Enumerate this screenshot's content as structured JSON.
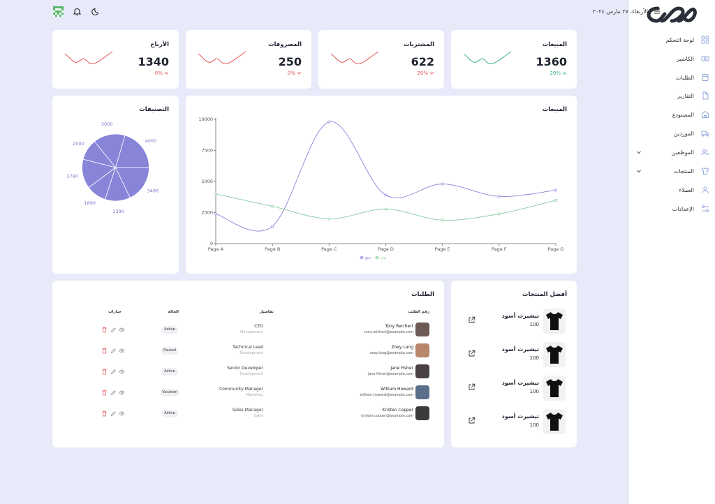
{
  "topbar": {
    "date": "الأربعاء، ٢٧ مارس ٢٠٢٤"
  },
  "sidebar": {
    "items": [
      {
        "label": "لوحة التحكم",
        "icon": "dashboard-icon"
      },
      {
        "label": "الكاشير",
        "icon": "cashier-icon"
      },
      {
        "label": "الطلبات",
        "icon": "orders-icon"
      },
      {
        "label": "التقارير",
        "icon": "reports-icon"
      },
      {
        "label": "المستودع",
        "icon": "warehouse-icon"
      },
      {
        "label": "الموردين",
        "icon": "truck-icon"
      },
      {
        "label": "الموظفين",
        "icon": "users-icon"
      },
      {
        "label": "المنتجات",
        "icon": "tshirt-icon"
      },
      {
        "label": "العملاء",
        "icon": "customers-icon"
      },
      {
        "label": "الإعدادات",
        "icon": "settings-icon"
      }
    ]
  },
  "stats": [
    {
      "title": "المبيعات",
      "value": "1360",
      "change": "20%",
      "trend": "up",
      "color": "#3aae83"
    },
    {
      "title": "المشتريات",
      "value": "622",
      "change": "20%",
      "trend": "down",
      "color": "#e25555"
    },
    {
      "title": "المصروفات",
      "value": "250",
      "change": "0%",
      "trend": "down",
      "color": "#e25555"
    },
    {
      "title": "الأرباح",
      "value": "1340",
      "change": "0%",
      "trend": "down",
      "color": "#e25555"
    }
  ],
  "chart_data": [
    {
      "type": "line",
      "title": "المبيعات",
      "categories": [
        "Page A",
        "Page B",
        "Page C",
        "Page D",
        "Page E",
        "Page F",
        "Page G"
      ],
      "ylim": [
        0,
        10000
      ],
      "yticks": [
        0,
        2500,
        5000,
        7500,
        10000
      ],
      "grid": false,
      "legend": "bottom",
      "series": [
        {
          "name": "pv",
          "color": "#8884d8",
          "values": [
            2400,
            1398,
            9800,
            3908,
            4800,
            3800,
            4300
          ]
        },
        {
          "name": "uv",
          "color": "#82ca9d",
          "values": [
            4000,
            3000,
            2000,
            2780,
            1890,
            2390,
            3490
          ]
        }
      ]
    },
    {
      "type": "pie",
      "title": "التصنيفات",
      "color": "#8884d8",
      "values": [
        4000,
        3000,
        2000,
        2780,
        1890,
        2390,
        3490
      ]
    }
  ],
  "orders": {
    "title": "الطلبات",
    "columns": [
      "رقم الطلب",
      "تفاصيل",
      "الحالة",
      "خيارات"
    ],
    "rows": [
      {
        "name": "Tony Reichert",
        "email": "tony.reichert@example.com",
        "role": "CEO",
        "dept": "Management",
        "status": "Active"
      },
      {
        "name": "Zoey Lang",
        "email": "zoey.lang@example.com",
        "role": "Technical Lead",
        "dept": "Development",
        "status": "Paused"
      },
      {
        "name": "Jane Fisher",
        "email": "jane.fisher@example.com",
        "role": "Senior Developer",
        "dept": "Development",
        "status": "Active"
      },
      {
        "name": "William Howard",
        "email": "william.howard@example.com",
        "role": "Community Manager",
        "dept": "Marketing",
        "status": "Vacation"
      },
      {
        "name": "Kristen Copper",
        "email": "kristen.cooper@example.com",
        "role": "Sales Manager",
        "dept": "Sales",
        "status": "Active"
      }
    ]
  },
  "products": {
    "title": "أفضل المنتجات",
    "items": [
      {
        "name": "تيشيرت أسود",
        "price": "100"
      },
      {
        "name": "تيشيرت أسود",
        "price": "100"
      },
      {
        "name": "تيشيرت أسود",
        "price": "100"
      },
      {
        "name": "تيشيرت أسود",
        "price": "100"
      }
    ]
  }
}
